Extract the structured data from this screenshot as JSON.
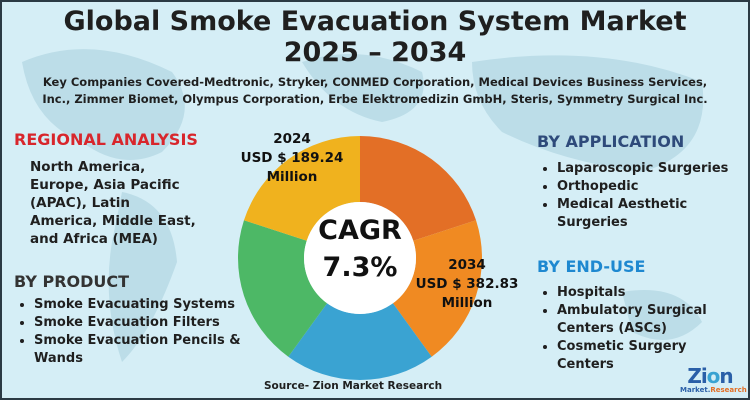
{
  "title": {
    "line1": "Global Smoke Evacuation System Market",
    "line2": "2025 – 2034"
  },
  "companies": {
    "line1": "Key Companies Covered-Medtronic, Stryker, CONMED Corporation, Medical Devices Business Services,",
    "line2": "Inc., Zimmer Biomet, Olympus Corporation, Erbe Elektromedizin GmbH, Steris, Symmetry Surgical Inc."
  },
  "regional": {
    "heading": "REGIONAL ANALYSIS",
    "lines": [
      "North America,",
      "Europe, Asia Pacific",
      "(APAC), Latin",
      "America, Middle East,",
      "and Africa (MEA)"
    ]
  },
  "product": {
    "heading": "BY PRODUCT",
    "items": [
      "Smoke Evacuating Systems",
      "Smoke Evacuation Filters",
      "Smoke Evacuation Pencils & Wands"
    ]
  },
  "application": {
    "heading": "BY APPLICATION",
    "items": [
      "Laparoscopic Surgeries",
      "Orthopedic",
      "Medical Aesthetic Surgeries"
    ]
  },
  "enduse": {
    "heading": "BY END-USE",
    "items": [
      "Hospitals",
      "Ambulatory Surgical Centers (ASCs)",
      "Cosmetic Surgery Centers"
    ]
  },
  "market2024": {
    "year": "2024",
    "value": "USD $ 189.24",
    "unit": "Million"
  },
  "market2034": {
    "year": "2034",
    "value": "USD $ 382.83",
    "unit": "Million"
  },
  "cagr": {
    "label": "CAGR",
    "value": "7.3%"
  },
  "donut_colors": [
    "#e36f26",
    "#f08a22",
    "#3aa3d2",
    "#4db866",
    "#f0b21e"
  ],
  "heading_colors": {
    "regional": "#d8262c",
    "product": "#333333",
    "application": "#2e4a7a",
    "enduse": "#1e88d0"
  },
  "source": "Source- Zion Market Research",
  "logo": {
    "name": "Zion",
    "tagline": "Market.Research"
  }
}
